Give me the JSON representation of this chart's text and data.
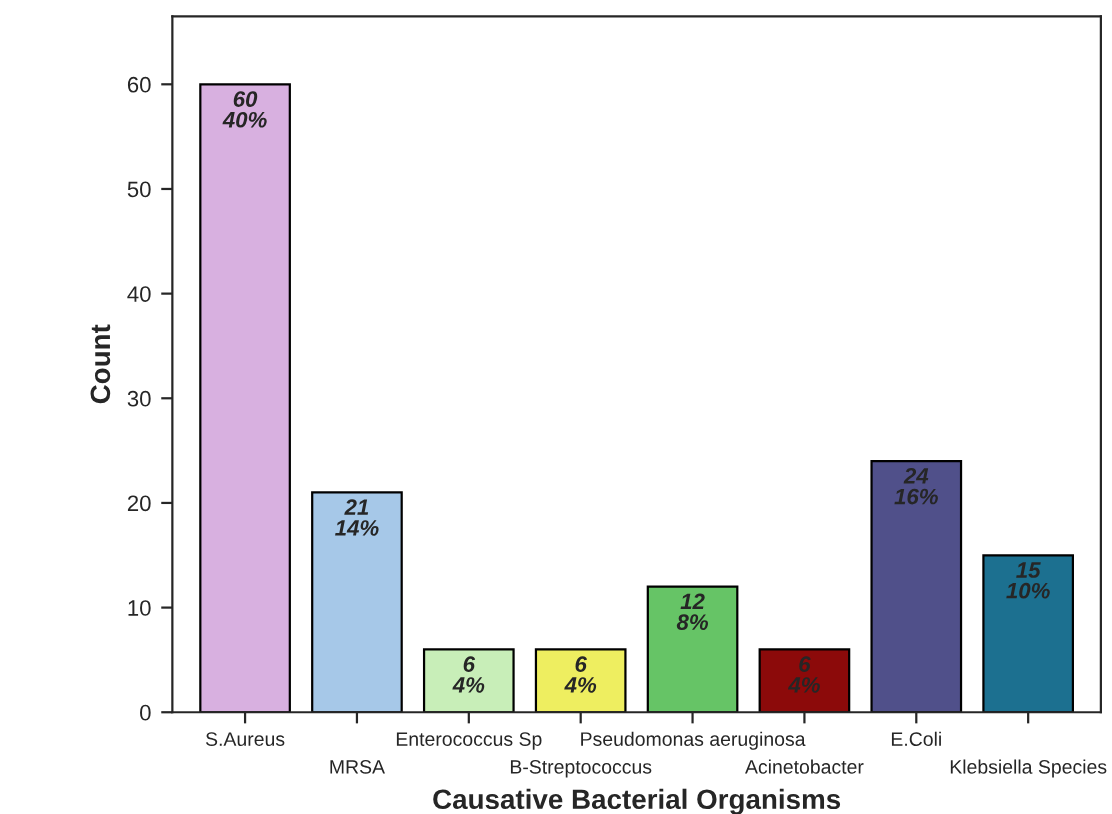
{
  "chart_data": {
    "type": "bar",
    "xlabel": "Causative Bacterial Organisms",
    "ylabel": "Count",
    "categories": [
      "S.Aureus",
      "MRSA",
      "Enterococcus Sp",
      "B-Streptococcus",
      "Pseudomonas aeruginosa",
      "Acinetobacter",
      "E.Coli",
      "Klebsiella Species"
    ],
    "values": [
      60,
      21,
      6,
      6,
      12,
      6,
      24,
      15
    ],
    "value_labels": [
      "60\n40%",
      "21\n14%",
      "6\n4%",
      "6\n4%",
      "12\n8%",
      "6\n4%",
      "24\n16%",
      "15\n10%"
    ],
    "colors": [
      "#d8b0e0",
      "#a6c8e8",
      "#c8eeb8",
      "#eeee60",
      "#66c466",
      "#8c0a0a",
      "#50508a",
      "#1c7090"
    ],
    "ylim": [
      0,
      66.5
    ],
    "yticks": [
      0,
      10,
      20,
      30,
      40,
      50,
      60
    ],
    "grid": false,
    "legend": false
  }
}
